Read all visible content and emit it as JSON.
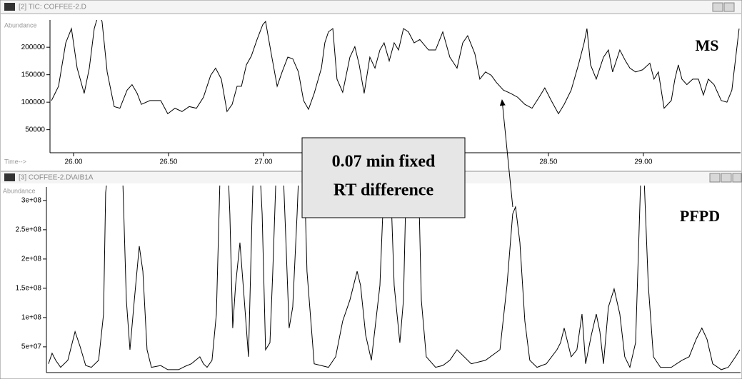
{
  "chart_data": [
    {
      "type": "line",
      "window_title": "[2] TIC: COFFEE-2.D",
      "y_label": "Abundance",
      "x_label": "Time-->",
      "xlim": [
        25.876,
        29.508
      ],
      "ylim": [
        8000,
        247000
      ],
      "xticks": [
        {
          "value": 26,
          "label": "26.00"
        },
        {
          "value": 26.5,
          "label": "26.50"
        },
        {
          "value": 27,
          "label": "27.00"
        },
        {
          "value": 28.5,
          "label": "28.50"
        },
        {
          "value": 29,
          "label": "29.00"
        }
      ],
      "yticks": [
        50000,
        100000,
        150000,
        200000
      ],
      "x": [
        25.884,
        25.921,
        25.959,
        25.989,
        26.019,
        26.056,
        26.083,
        26.109,
        26.132,
        26.15,
        26.177,
        26.214,
        26.244,
        26.282,
        26.308,
        26.335,
        26.357,
        26.402,
        26.459,
        26.496,
        26.534,
        26.571,
        26.609,
        26.647,
        26.684,
        26.722,
        26.748,
        26.778,
        26.808,
        26.835,
        26.861,
        26.884,
        26.91,
        26.936,
        26.966,
        26.996,
        27.011,
        27.041,
        27.072,
        27.098,
        27.128,
        27.154,
        27.184,
        27.211,
        27.237,
        27.267,
        27.305,
        27.323,
        27.342,
        27.365,
        27.387,
        27.417,
        27.455,
        27.481,
        27.504,
        27.53,
        27.56,
        27.587,
        27.613,
        27.635,
        27.662,
        27.688,
        27.711,
        27.737,
        27.763,
        27.793,
        27.823,
        27.869,
        27.906,
        27.944,
        27.981,
        28.019,
        28.049,
        28.075,
        28.113,
        28.139,
        28.169,
        28.199,
        28.226,
        28.263,
        28.301,
        28.338,
        28.376,
        28.414,
        28.451,
        28.481,
        28.515,
        28.553,
        28.583,
        28.62,
        28.658,
        28.688,
        28.703,
        28.722,
        28.752,
        28.79,
        28.816,
        28.838,
        28.876,
        28.906,
        28.929,
        28.959,
        28.996,
        29.034,
        29.056,
        29.079,
        29.109,
        29.147,
        29.166,
        29.184,
        29.203,
        29.229,
        29.26,
        29.29,
        29.316,
        29.342,
        29.372,
        29.41,
        29.44,
        29.466,
        29.504
      ],
      "series": [
        {
          "name": "MS",
          "color": "#000000",
          "values": [
            103000,
            129000,
            208000,
            234000,
            162000,
            116000,
            162000,
            234000,
            261000,
            247000,
            155000,
            92000,
            89000,
            122000,
            132000,
            116000,
            96000,
            103000,
            103000,
            79000,
            89000,
            83000,
            92000,
            89000,
            109000,
            149000,
            162000,
            142000,
            83000,
            96000,
            129000,
            129000,
            168000,
            184000,
            214000,
            241000,
            247000,
            188000,
            129000,
            155000,
            182000,
            179000,
            155000,
            103000,
            87000,
            116000,
            162000,
            208000,
            228000,
            234000,
            142000,
            118000,
            182000,
            201000,
            168000,
            116000,
            182000,
            162000,
            195000,
            208000,
            175000,
            208000,
            195000,
            234000,
            228000,
            208000,
            214000,
            195000,
            195000,
            228000,
            182000,
            162000,
            208000,
            221000,
            188000,
            142000,
            155000,
            149000,
            136000,
            122000,
            116000,
            109000,
            96000,
            89000,
            109000,
            126000,
            103000,
            79000,
            96000,
            122000,
            168000,
            208000,
            234000,
            168000,
            142000,
            182000,
            195000,
            155000,
            195000,
            175000,
            162000,
            155000,
            159000,
            171000,
            142000,
            155000,
            89000,
            103000,
            142000,
            168000,
            142000,
            132000,
            142000,
            142000,
            113000,
            142000,
            132000,
            103000,
            100000,
            122000,
            234000
          ]
        }
      ]
    },
    {
      "type": "line",
      "window_title": "[3] COFFEE-2.D\\AIB1A",
      "y_label": "Abundance",
      "xlim": [
        25.876,
        29.508
      ],
      "ylim": [
        6000000,
        323000000
      ],
      "yticks": [
        {
          "value": 50000000,
          "label": "5e+07"
        },
        {
          "value": 100000000,
          "label": "1e+08"
        },
        {
          "value": 150000000,
          "label": "1.5e+08"
        },
        {
          "value": 200000000,
          "label": "2e+08"
        },
        {
          "value": 250000000,
          "label": "2.5e+08"
        },
        {
          "value": 300000000,
          "label": "3e+08"
        }
      ],
      "x": [
        25.868,
        25.887,
        25.906,
        25.932,
        25.97,
        26.008,
        26.034,
        26.064,
        26.094,
        26.132,
        26.158,
        26.169,
        26.196,
        26.233,
        26.259,
        26.278,
        26.297,
        26.32,
        26.346,
        26.365,
        26.387,
        26.41,
        26.459,
        26.496,
        26.553,
        26.59,
        26.62,
        26.665,
        26.684,
        26.703,
        26.729,
        26.752,
        26.771,
        26.786,
        26.808,
        26.823,
        26.838,
        26.853,
        26.876,
        26.899,
        26.921,
        26.94,
        26.951,
        26.974,
        26.993,
        27.011,
        27.034,
        27.049,
        27.072,
        27.098,
        27.117,
        27.135,
        27.154,
        27.177,
        27.192,
        27.211,
        27.229,
        27.267,
        27.342,
        27.38,
        27.417,
        27.455,
        27.493,
        27.511,
        27.538,
        27.568,
        27.613,
        27.643,
        27.662,
        27.688,
        27.718,
        27.737,
        27.756,
        27.812,
        27.831,
        27.857,
        27.906,
        27.944,
        27.981,
        28.019,
        28.094,
        28.169,
        28.245,
        28.282,
        28.312,
        28.327,
        28.35,
        28.376,
        28.402,
        28.44,
        28.489,
        28.545,
        28.564,
        28.583,
        28.62,
        28.65,
        28.677,
        28.696,
        28.726,
        28.752,
        28.771,
        28.79,
        28.816,
        28.846,
        28.876,
        28.902,
        28.929,
        28.959,
        28.985,
        29.004,
        29.026,
        29.053,
        29.09,
        29.147,
        29.203,
        29.241,
        29.278,
        29.308,
        29.335,
        29.365,
        29.41,
        29.447,
        29.485,
        29.508
      ],
      "series": [
        {
          "name": "PFPD",
          "color": "#000000",
          "values": [
            21000000,
            39000000,
            27000000,
            15000000,
            27000000,
            76000000,
            51000000,
            18000000,
            15000000,
            27000000,
            106000000,
            313000000,
            399000000,
            399000000,
            338000000,
            130000000,
            45000000,
            130000000,
            222000000,
            179000000,
            45000000,
            15000000,
            18000000,
            11000000,
            11000000,
            17000000,
            21000000,
            33000000,
            21000000,
            15000000,
            27000000,
            106000000,
            338000000,
            399000000,
            399000000,
            277000000,
            82000000,
            155000000,
            228000000,
            130000000,
            33000000,
            277000000,
            399000000,
            399000000,
            277000000,
            45000000,
            57000000,
            179000000,
            399000000,
            399000000,
            240000000,
            82000000,
            118000000,
            277000000,
            399000000,
            399000000,
            179000000,
            21000000,
            15000000,
            33000000,
            94000000,
            130000000,
            179000000,
            155000000,
            70000000,
            27000000,
            155000000,
            399000000,
            399000000,
            155000000,
            57000000,
            130000000,
            399000000,
            399000000,
            130000000,
            33000000,
            15000000,
            18000000,
            27000000,
            45000000,
            21000000,
            27000000,
            45000000,
            155000000,
            277000000,
            289000000,
            228000000,
            94000000,
            27000000,
            15000000,
            21000000,
            45000000,
            57000000,
            82000000,
            33000000,
            45000000,
            106000000,
            21000000,
            70000000,
            106000000,
            76000000,
            21000000,
            118000000,
            149000000,
            106000000,
            33000000,
            15000000,
            57000000,
            326000000,
            338000000,
            155000000,
            33000000,
            15000000,
            15000000,
            27000000,
            33000000,
            63000000,
            82000000,
            63000000,
            21000000,
            11000000,
            15000000,
            33000000,
            45000000
          ]
        }
      ]
    }
  ],
  "annotation": [
    "0.07 min fixed",
    "RT difference"
  ]
}
